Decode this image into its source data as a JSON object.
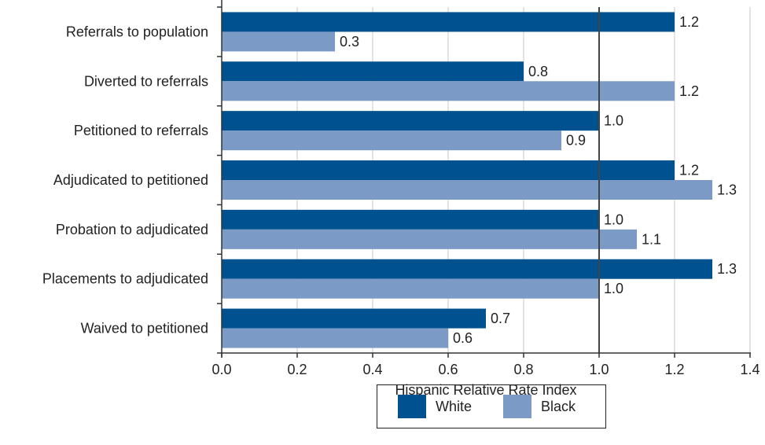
{
  "chart_data": {
    "type": "bar",
    "orientation": "horizontal",
    "categories": [
      "Referrals to population",
      "Diverted to referrals",
      "Petitioned to referrals",
      "Adjudicated to petitioned",
      "Probation to adjudicated",
      "Placements to adjudicated",
      "Waived to petitioned"
    ],
    "series": [
      {
        "name": "White",
        "color": "#00518f",
        "values": [
          1.2,
          0.8,
          1.0,
          1.2,
          1.0,
          1.3,
          0.7
        ],
        "labels": [
          "1.2",
          "0.8",
          "1.0",
          "1.2",
          "1.0",
          "1.3",
          "0.7"
        ]
      },
      {
        "name": "Black",
        "color": "#7b9bc6",
        "values": [
          0.3,
          1.2,
          0.9,
          1.3,
          1.1,
          1.0,
          0.6
        ],
        "labels": [
          "0.3",
          "1.2",
          "0.9",
          "1.3",
          "1.1",
          "1.0",
          "0.6"
        ]
      }
    ],
    "xlabel": "Hispanic Relative Rate Index",
    "xlim": [
      0,
      1.4
    ],
    "xticks": [
      0,
      0.2,
      0.4,
      0.6,
      0.8,
      1.0,
      1.2,
      1.4
    ],
    "xtick_labels": [
      "0.0",
      "0.2",
      "0.4",
      "0.6",
      "0.8",
      "1.0",
      "1.2",
      "1.4"
    ],
    "reference_line": 1.0,
    "grid": "vertical",
    "legend_position": "bottom-center"
  },
  "legend": {
    "white_label": "White",
    "black_label": "Black",
    "white_color": "#00518f",
    "black_color": "#7b9bc6"
  }
}
